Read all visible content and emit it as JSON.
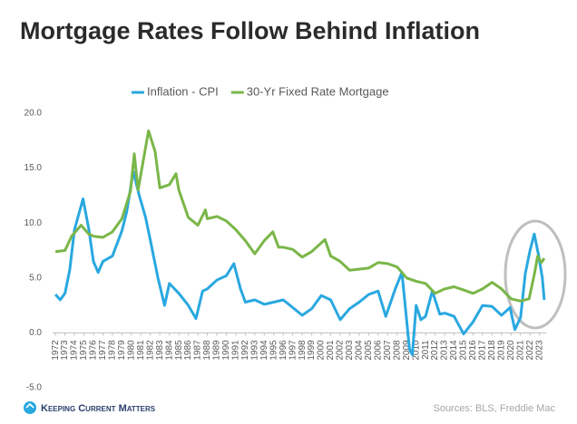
{
  "chart_data": {
    "type": "line",
    "title": "Mortgage Rates Follow Behind Inflation",
    "series": [
      {
        "name": "Inflation - CPI",
        "color": "#29a8e0",
        "x": [
          1972,
          1972.5,
          1973,
          1973.5,
          1974,
          1974.9,
          1975.5,
          1976,
          1976.5,
          1977,
          1978,
          1979,
          1979.5,
          1980.2,
          1980.8,
          1981.5,
          1982,
          1982.8,
          1983.5,
          1984,
          1985,
          1986,
          1986.8,
          1987.5,
          1988,
          1989,
          1990,
          1990.8,
          1991.5,
          1992,
          1993,
          1994,
          1995,
          1996,
          1997,
          1998,
          1999,
          2000,
          2001,
          2002,
          2003,
          2004,
          2005,
          2006,
          2006.8,
          2007.8,
          2008.5,
          2009.3,
          2009.6,
          2010,
          2010.5,
          2011,
          2011.7,
          2012.5,
          2013,
          2014,
          2015,
          2016,
          2017,
          2018,
          2019,
          2019.9,
          2020.4,
          2021,
          2021.5,
          2022,
          2022.45,
          2022.9,
          2023.3,
          2023.5
        ],
        "values": [
          3.5,
          3.0,
          3.6,
          5.7,
          9.4,
          12.2,
          9.5,
          6.5,
          5.5,
          6.5,
          7.0,
          9.3,
          11,
          14.7,
          12.6,
          10.5,
          8.4,
          5.0,
          2.5,
          4.5,
          3.6,
          2.5,
          1.3,
          3.8,
          4.0,
          4.8,
          5.2,
          6.3,
          4.0,
          2.8,
          3.0,
          2.6,
          2.8,
          3.0,
          2.3,
          1.6,
          2.2,
          3.4,
          3.0,
          1.2,
          2.2,
          2.8,
          3.5,
          3.8,
          1.5,
          4.0,
          5.5,
          -1.5,
          -2.0,
          2.5,
          1.2,
          1.5,
          3.8,
          1.7,
          1.8,
          1.5,
          -0.1,
          1.0,
          2.5,
          2.4,
          1.6,
          2.3,
          0.3,
          1.4,
          5.4,
          7.5,
          9.0,
          7.1,
          5.0,
          3.0
        ]
      },
      {
        "name": "30-Yr Fixed Rate Mortgage",
        "color": "#7ab648",
        "x": [
          1972,
          1973,
          1973.7,
          1974.7,
          1975.5,
          1976,
          1977,
          1978,
          1979,
          1979.9,
          1980.3,
          1980.7,
          1981.8,
          1982.5,
          1983,
          1984,
          1984.7,
          1985,
          1986,
          1987,
          1987.8,
          1988,
          1989,
          1990,
          1991,
          1992,
          1993,
          1994,
          1994.9,
          1995.5,
          1996,
          1997,
          1998,
          1999,
          2000.4,
          2001,
          2002,
          2003,
          2004,
          2005,
          2006,
          2007,
          2008,
          2009,
          2010,
          2011,
          2012,
          2013,
          2014,
          2015,
          2016,
          2017,
          2018,
          2019,
          2020,
          2021,
          2021.9,
          2022.5,
          2022.8,
          2023.2,
          2023.5
        ],
        "values": [
          7.4,
          7.5,
          8.8,
          9.8,
          9.0,
          8.8,
          8.7,
          9.2,
          10.4,
          12.9,
          16.3,
          13.0,
          18.4,
          16.5,
          13.2,
          13.5,
          14.5,
          13.0,
          10.5,
          9.8,
          11.2,
          10.4,
          10.6,
          10.2,
          9.4,
          8.4,
          7.2,
          8.4,
          9.2,
          7.8,
          7.8,
          7.6,
          6.9,
          7.4,
          8.5,
          7.0,
          6.5,
          5.7,
          5.8,
          5.9,
          6.4,
          6.3,
          6.0,
          5.0,
          4.7,
          4.5,
          3.6,
          4.0,
          4.2,
          3.9,
          3.6,
          4.0,
          4.6,
          4.0,
          3.1,
          2.9,
          3.1,
          5.5,
          7.0,
          6.4,
          6.8
        ]
      }
    ],
    "xlim": [
      1971.7,
      2023.7
    ],
    "xticks": [
      1972,
      1973,
      1974,
      1975,
      1976,
      1977,
      1978,
      1979,
      1980,
      1981,
      1982,
      1983,
      1984,
      1985,
      1986,
      1987,
      1988,
      1989,
      1990,
      1991,
      1992,
      1993,
      1994,
      1995,
      1996,
      1997,
      1998,
      1999,
      2000,
      2001,
      2002,
      2003,
      2004,
      2005,
      2006,
      2007,
      2008,
      2009,
      2010,
      2011,
      2012,
      2013,
      2014,
      2015,
      2016,
      2017,
      2018,
      2019,
      2020,
      2021,
      2022,
      2023
    ],
    "ylim": [
      -5,
      20
    ],
    "yticks": [
      {
        "value": -5,
        "label": "-5.0"
      },
      {
        "value": 0,
        "label": "0.0"
      },
      {
        "value": 5,
        "label": "5.0"
      },
      {
        "value": 10,
        "label": "10.0"
      },
      {
        "value": 15,
        "label": "15.0"
      },
      {
        "value": 20,
        "label": "20.0"
      }
    ],
    "grid": false,
    "legend": "top",
    "brand": "Keeping Current Matters",
    "source": "Sources: BLS, Freddie Mac"
  }
}
